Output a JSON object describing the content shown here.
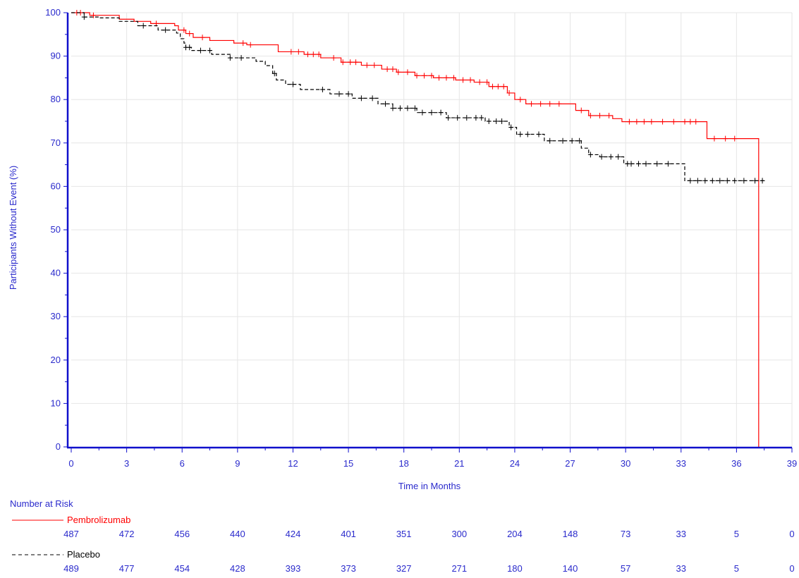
{
  "chart_data": {
    "type": "line",
    "subtype": "kaplan-meier",
    "title": "",
    "xlabel": "Time in Months",
    "ylabel": "Participants Without Event (%)",
    "xlim": [
      0,
      39
    ],
    "ylim": [
      0,
      100
    ],
    "x_ticks": [
      0,
      3,
      6,
      9,
      12,
      15,
      18,
      21,
      24,
      27,
      30,
      33,
      36,
      39
    ],
    "y_ticks": [
      0,
      10,
      20,
      30,
      40,
      50,
      60,
      70,
      80,
      90,
      100
    ],
    "grid": true,
    "colors": {
      "axis": "#1010cc",
      "tick_text": "#2a2acc",
      "grid": "#e6e6e6"
    },
    "series": [
      {
        "name": "Pembrolizumab",
        "color": "#ff0000",
        "line_style": "solid",
        "steps": [
          [
            0,
            100
          ],
          [
            1.0,
            99.4
          ],
          [
            2.0,
            99.4
          ],
          [
            2.6,
            98.5
          ],
          [
            3.4,
            98.0
          ],
          [
            4.3,
            97.5
          ],
          [
            5.6,
            97.0
          ],
          [
            5.8,
            96.0
          ],
          [
            6.2,
            95.2
          ],
          [
            6.6,
            94.3
          ],
          [
            7.5,
            93.6
          ],
          [
            8.8,
            93.0
          ],
          [
            9.5,
            92.6
          ],
          [
            10.8,
            92.6
          ],
          [
            11.2,
            91.0
          ],
          [
            12.6,
            90.4
          ],
          [
            13.5,
            89.6
          ],
          [
            14.6,
            88.6
          ],
          [
            15.7,
            87.9
          ],
          [
            16.8,
            87.0
          ],
          [
            17.6,
            86.3
          ],
          [
            18.6,
            85.5
          ],
          [
            19.6,
            85.0
          ],
          [
            20.8,
            84.5
          ],
          [
            21.8,
            84.0
          ],
          [
            22.6,
            83.0
          ],
          [
            23.6,
            81.5
          ],
          [
            24.0,
            80.0
          ],
          [
            24.6,
            79.0
          ],
          [
            26.6,
            79.0
          ],
          [
            27.3,
            77.5
          ],
          [
            28.0,
            76.3
          ],
          [
            29.3,
            75.6
          ],
          [
            29.8,
            74.9
          ],
          [
            34.4,
            71.0
          ],
          [
            37.2,
            71.0
          ],
          [
            37.2,
            0
          ]
        ],
        "censor_x": [
          0.3,
          0.5,
          1.2,
          4.6,
          6.1,
          6.4,
          7.1,
          9.3,
          9.7,
          11.9,
          12.3,
          12.8,
          13.1,
          13.4,
          14.2,
          14.7,
          15.1,
          15.4,
          16.0,
          16.4,
          17.1,
          17.4,
          17.7,
          18.2,
          18.7,
          19.1,
          19.5,
          19.9,
          20.3,
          20.7,
          21.2,
          21.6,
          22.1,
          22.5,
          22.8,
          23.1,
          23.4,
          23.7,
          24.3,
          24.9,
          25.4,
          25.9,
          26.4,
          27.6,
          28.1,
          28.6,
          29.1,
          30.2,
          30.6,
          31.0,
          31.4,
          32.0,
          32.6,
          33.2,
          33.5,
          33.8,
          34.8,
          35.4,
          35.9
        ]
      },
      {
        "name": "Placebo",
        "color": "#000000",
        "line_style": "dashed",
        "steps": [
          [
            0,
            100
          ],
          [
            0.7,
            99.0
          ],
          [
            1.5,
            98.8
          ],
          [
            2.6,
            98.0
          ],
          [
            3.6,
            97.0
          ],
          [
            4.7,
            96.0
          ],
          [
            5.7,
            95.3
          ],
          [
            5.9,
            94.0
          ],
          [
            6.1,
            93.0
          ],
          [
            6.2,
            92.0
          ],
          [
            6.5,
            91.3
          ],
          [
            7.6,
            90.4
          ],
          [
            8.6,
            89.6
          ],
          [
            10.0,
            88.8
          ],
          [
            10.5,
            87.8
          ],
          [
            10.9,
            86.0
          ],
          [
            11.1,
            84.5
          ],
          [
            11.6,
            83.5
          ],
          [
            12.4,
            82.3
          ],
          [
            14.0,
            81.3
          ],
          [
            15.2,
            80.3
          ],
          [
            16.6,
            79.0
          ],
          [
            17.4,
            78.0
          ],
          [
            18.7,
            77.0
          ],
          [
            20.3,
            75.8
          ],
          [
            22.4,
            75.0
          ],
          [
            23.7,
            73.6
          ],
          [
            24.1,
            72.0
          ],
          [
            25.6,
            70.5
          ],
          [
            27.6,
            68.8
          ],
          [
            28.0,
            67.3
          ],
          [
            28.6,
            66.8
          ],
          [
            29.9,
            65.2
          ],
          [
            33.2,
            63.5
          ],
          [
            33.2,
            61.3
          ],
          [
            37.6,
            61.3
          ]
        ],
        "censor_x": [
          0.7,
          3.9,
          5.1,
          6.2,
          6.4,
          7.0,
          7.5,
          8.6,
          9.2,
          11.0,
          12.0,
          13.6,
          14.5,
          15.0,
          15.7,
          16.3,
          17.0,
          17.4,
          17.8,
          18.2,
          18.6,
          19.0,
          19.5,
          20.0,
          20.4,
          20.9,
          21.4,
          21.9,
          22.2,
          22.6,
          23.0,
          23.3,
          23.8,
          24.3,
          24.7,
          25.3,
          25.9,
          26.6,
          27.1,
          27.5,
          28.1,
          28.7,
          29.2,
          29.6,
          30.1,
          30.3,
          30.7,
          31.1,
          31.7,
          32.3,
          33.5,
          33.9,
          34.3,
          34.7,
          35.1,
          35.5,
          35.9,
          36.4,
          37.0,
          37.4
        ]
      }
    ],
    "risk_table": {
      "title": "Number at Risk",
      "groups": [
        {
          "name": "Pembrolizumab",
          "color": "#ff0000",
          "line_style": "solid",
          "values": [
            "487",
            "472",
            "456",
            "440",
            "424",
            "401",
            "351",
            "300",
            "204",
            "148",
            "73",
            "33",
            "5",
            "0"
          ]
        },
        {
          "name": "Placebo",
          "color": "#000000",
          "line_style": "dashed",
          "values": [
            "489",
            "477",
            "454",
            "428",
            "393",
            "373",
            "327",
            "271",
            "180",
            "140",
            "57",
            "33",
            "5",
            "0"
          ]
        }
      ]
    }
  }
}
